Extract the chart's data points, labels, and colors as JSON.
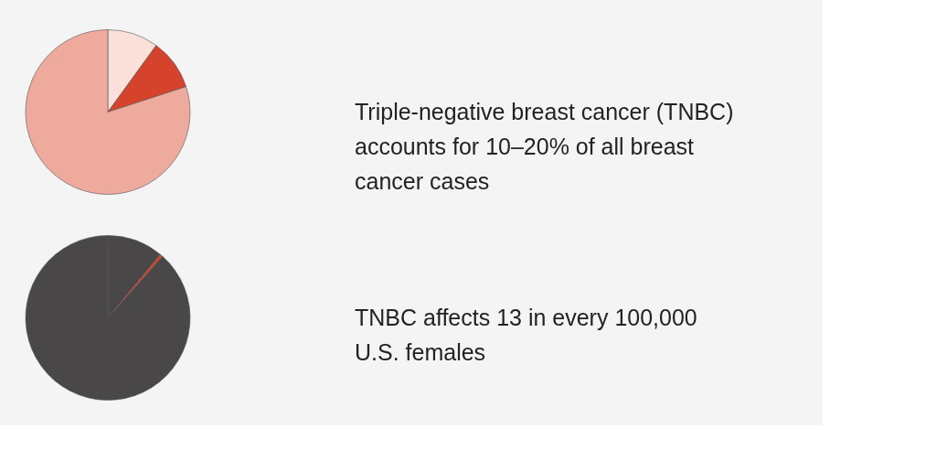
{
  "chart_data": [
    {
      "type": "pie",
      "categories": [
        null,
        null,
        null
      ],
      "values": [
        10,
        10,
        80
      ],
      "colors": [
        "#fbe0da",
        "#d5432c",
        "#efaa9e"
      ],
      "annotations": [
        "Triple-negative breast cancer (TNBC) accounts for 10–20% of all breast cancer cases"
      ]
    },
    {
      "type": "pie",
      "categories": [
        null,
        null,
        null
      ],
      "values": [
        11,
        0.6,
        88.4
      ],
      "colors": [
        "#4a4748",
        "#d5432c",
        "#4a4748"
      ],
      "annotations": [
        "TNBC affects 13 in every 100,000 U.S. females"
      ]
    }
  ]
}
